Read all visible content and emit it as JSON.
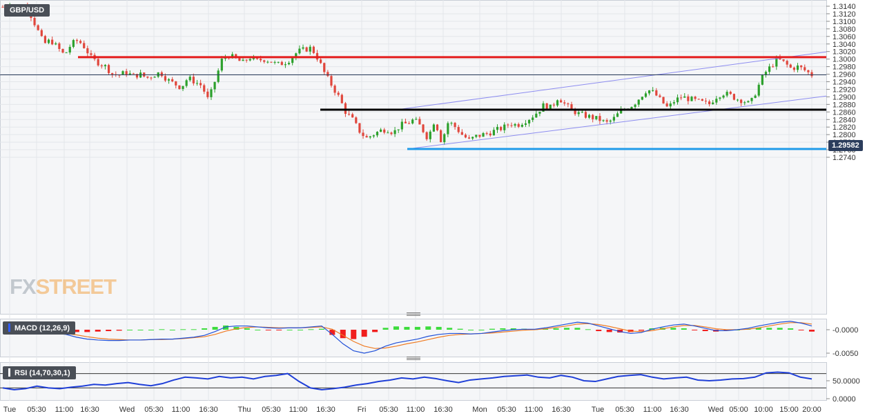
{
  "symbol": "GBP/USD",
  "current_price": "1.29582",
  "watermark": {
    "fx": "FX",
    "street": "STREET"
  },
  "colors": {
    "bull": "#2ca02c",
    "bear": "#e0463c",
    "resistance": "#e31b1b",
    "support": "#000000",
    "low_line": "#1e9be9",
    "channel": "#8c8cf0",
    "macd_line": "#1f4fd8",
    "signal_line": "#ef7b22",
    "rsi_line": "#1f3fd8"
  },
  "x_axis_labels": [
    "Tue",
    "05:30",
    "11:00",
    "16:30",
    "Wed",
    "05:30",
    "11:00",
    "16:30",
    "Thu",
    "05:30",
    "11:00",
    "16:30",
    "Fri",
    "05:30",
    "11:00",
    "16:30",
    "Mon",
    "05:30",
    "11:00",
    "16:30",
    "Tue",
    "05:30",
    "11:00",
    "16:30",
    "Wed",
    "05:00",
    "10:00",
    "15:00",
    "20:00"
  ],
  "chart_data": [
    {
      "type": "candlestick",
      "title": "GBP/USD",
      "y_ticks": [
        "1.3140",
        "1.3120",
        "1.3100",
        "1.3080",
        "1.3060",
        "1.3040",
        "1.3020",
        "1.3000",
        "1.2980",
        "1.2960",
        "1.2940",
        "1.2920",
        "1.2900",
        "1.2880",
        "1.2860",
        "1.2840",
        "1.2820",
        "1.2800",
        "1.2780",
        "1.2760",
        "1.2740"
      ],
      "ylim": [
        1.2735,
        1.3148
      ],
      "price_path": [
        1.3138,
        1.3148,
        1.313,
        1.3142,
        1.312,
        1.308,
        1.304,
        1.305,
        1.303,
        1.301,
        1.304,
        1.305,
        1.303,
        1.3,
        1.299,
        1.298,
        1.296,
        1.2958,
        1.2965,
        1.2955,
        1.296,
        1.295,
        1.2958,
        1.2965,
        1.2945,
        1.2935,
        1.2925,
        1.295,
        1.294,
        1.293,
        1.289,
        1.2945,
        1.3,
        1.301,
        1.3,
        1.299,
        1.3005,
        1.2995,
        1.3,
        1.2995,
        1.2985,
        1.299,
        1.3,
        1.302,
        1.3025,
        1.303,
        1.3,
        1.296,
        1.293,
        1.29,
        1.286,
        1.284,
        1.281,
        1.279,
        1.28,
        1.281,
        1.2815,
        1.2805,
        1.2825,
        1.283,
        1.284,
        1.282,
        1.279,
        1.284,
        1.278,
        1.2835,
        1.282,
        1.28,
        1.2785,
        1.2795,
        1.28,
        1.2805,
        1.2812,
        1.2818,
        1.283,
        1.2825,
        1.2835,
        1.2845,
        1.286,
        1.288,
        1.287,
        1.29,
        1.288,
        1.2865,
        1.2855,
        1.285,
        1.2845,
        1.284,
        1.283,
        1.284,
        1.286,
        1.287,
        1.288,
        1.29,
        1.292,
        1.291,
        1.289,
        1.287,
        1.289,
        1.29,
        1.2895,
        1.289,
        1.2885,
        1.288,
        1.29,
        1.291,
        1.2905,
        1.2895,
        1.289,
        1.288,
        1.292,
        1.296,
        1.298,
        1.3,
        1.299,
        1.2975,
        1.298,
        1.297,
        1.2958
      ],
      "key_levels": [
        {
          "name": "resistance",
          "value": 1.3005
        },
        {
          "name": "support",
          "value": 1.2866
        },
        {
          "name": "low",
          "value": 1.2762
        }
      ],
      "channel_lines": [
        {
          "start": 1.2762,
          "end_at_edge": 1.2902
        },
        {
          "start": 1.2866,
          "end_at_edge": 1.3019
        }
      ],
      "current_price": 1.29582,
      "grid": true
    },
    {
      "type": "line",
      "title": "MACD (12,26,9)",
      "y_ticks": [
        "-0.0000",
        "-0.0050"
      ],
      "ylim": [
        -0.0058,
        0.0025
      ],
      "series": [
        {
          "name": "macd",
          "values": [
            -0.0008,
            -0.001,
            -0.0016,
            -0.002,
            -0.0022,
            -0.0023,
            -0.0023,
            -0.0022,
            -0.0022,
            -0.0021,
            -0.002,
            -0.002,
            -0.0018,
            -0.0016,
            -0.0012,
            -0.0004,
            0.0006,
            0.0008,
            0.0008,
            0.0006,
            0.0004,
            0.0003,
            0.0004,
            0.0004,
            0.0006,
            0.0008,
            -0.001,
            -0.003,
            -0.0045,
            -0.005,
            -0.0045,
            -0.0035,
            -0.0028,
            -0.0024,
            -0.002,
            -0.0014,
            -0.001,
            -0.0008,
            -0.0008,
            -0.0009,
            -0.0008,
            -0.0005,
            -0.0002,
            0.0,
            0.0001,
            0.0001,
            0.0004,
            0.0008,
            0.0012,
            0.0016,
            0.0014,
            0.0008,
            0.0002,
            -0.0004,
            -0.0008,
            -0.0006,
            0.0001,
            0.0006,
            0.001,
            0.0012,
            0.0008,
            0.0003,
            -0.0002,
            -0.0002,
            0.0,
            0.0003,
            0.0008,
            0.0012,
            0.0016,
            0.0018,
            0.0014,
            0.0008
          ]
        },
        {
          "name": "signal",
          "values": [
            -0.0006,
            -0.0008,
            -0.0011,
            -0.0015,
            -0.0018,
            -0.002,
            -0.0021,
            -0.0022,
            -0.0022,
            -0.0021,
            -0.0021,
            -0.002,
            -0.0019,
            -0.0017,
            -0.0015,
            -0.001,
            -0.0003,
            0.0002,
            0.0005,
            0.0006,
            0.0005,
            0.0004,
            0.0004,
            0.0004,
            0.0005,
            0.0006,
            0.0001,
            -0.0012,
            -0.0025,
            -0.0035,
            -0.004,
            -0.0039,
            -0.0035,
            -0.003,
            -0.0026,
            -0.0021,
            -0.0016,
            -0.0012,
            -0.001,
            -0.0009,
            -0.0008,
            -0.0007,
            -0.0005,
            -0.0003,
            -0.0001,
            0.0,
            0.0002,
            0.0005,
            0.0008,
            0.0012,
            0.0013,
            0.0011,
            0.0007,
            0.0002,
            -0.0003,
            -0.0004,
            -0.0002,
            0.0002,
            0.0006,
            0.0009,
            0.0009,
            0.0006,
            0.0002,
            0.0,
            0.0,
            0.0001,
            0.0004,
            0.0008,
            0.0012,
            0.0015,
            0.0015,
            0.0012
          ]
        }
      ]
    },
    {
      "type": "line",
      "title": "RSI (14,70,30,1)",
      "y_ticks": [
        "50.0000",
        "0.0000"
      ],
      "ylim": [
        0,
        100
      ],
      "levels": [
        70,
        30
      ],
      "series": [
        {
          "name": "rsi",
          "values": [
            30,
            25,
            28,
            35,
            30,
            28,
            32,
            35,
            40,
            38,
            42,
            45,
            40,
            36,
            42,
            52,
            60,
            58,
            55,
            62,
            58,
            60,
            55,
            62,
            65,
            70,
            48,
            30,
            25,
            28,
            32,
            38,
            42,
            48,
            52,
            58,
            55,
            60,
            56,
            50,
            45,
            52,
            55,
            58,
            62,
            64,
            66,
            60,
            58,
            65,
            60,
            50,
            48,
            55,
            62,
            65,
            67,
            60,
            55,
            58,
            60,
            52,
            50,
            52,
            55,
            56,
            60,
            72,
            74,
            72,
            60,
            55
          ]
        }
      ]
    }
  ]
}
